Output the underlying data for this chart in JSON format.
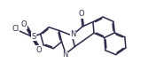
{
  "bg_color": "#ffffff",
  "bond_color": "#2a2a4a",
  "bond_width": 1.1,
  "font_size": 6.0,
  "fig_width": 1.67,
  "fig_height": 0.8,
  "dpi": 100,
  "xlim": [
    -0.5,
    9.0
  ],
  "ylim": [
    1.8,
    6.2
  ]
}
